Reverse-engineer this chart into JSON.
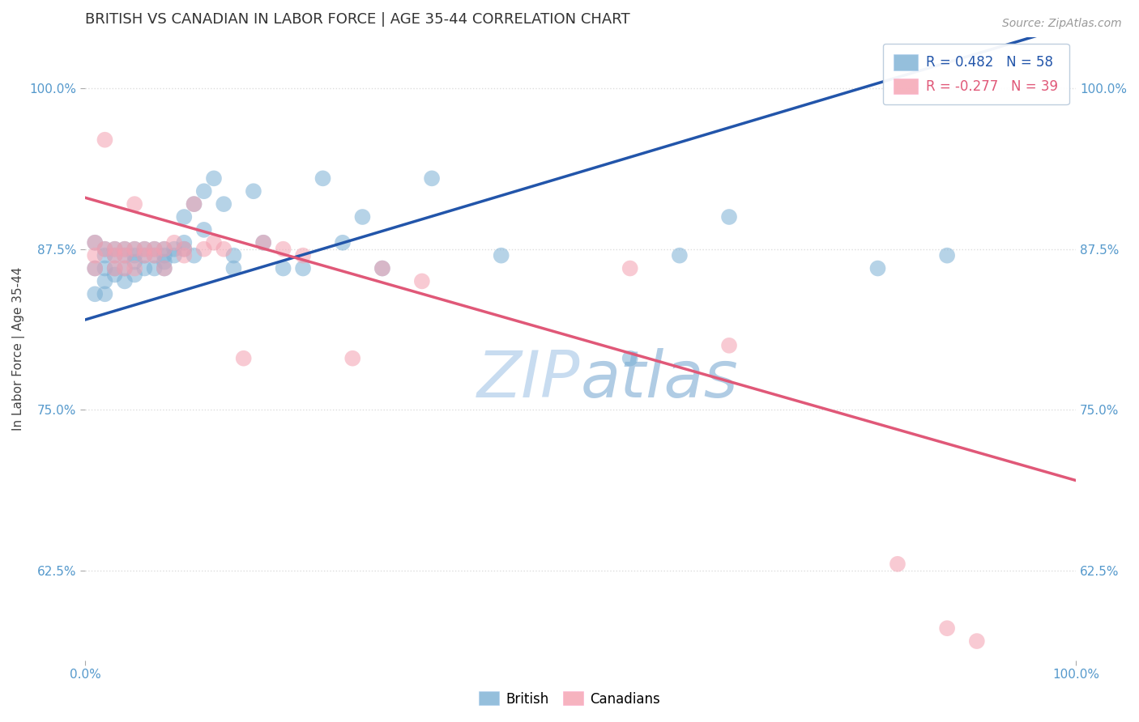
{
  "title": "BRITISH VS CANADIAN IN LABOR FORCE | AGE 35-44 CORRELATION CHART",
  "source_text": "Source: ZipAtlas.com",
  "ylabel": "In Labor Force | Age 35-44",
  "xlim": [
    0.0,
    1.0
  ],
  "ylim": [
    0.555,
    1.04
  ],
  "yticks": [
    0.625,
    0.75,
    0.875,
    1.0
  ],
  "ytick_labels": [
    "62.5%",
    "75.0%",
    "87.5%",
    "100.0%"
  ],
  "xtick_labels": [
    "0.0%",
    "100.0%"
  ],
  "xticks": [
    0.0,
    1.0
  ],
  "R_british": 0.482,
  "N_british": 58,
  "R_canadian": -0.277,
  "N_canadian": 39,
  "british_color": "#7BAFD4",
  "canadian_color": "#F4A0B0",
  "british_line_color": "#2255AA",
  "canadian_line_color": "#E05878",
  "watermark_color": "#D0E4F0",
  "background_color": "#FFFFFF",
  "grid_color": "#DDDDDD",
  "british_x": [
    0.01,
    0.01,
    0.01,
    0.02,
    0.02,
    0.02,
    0.02,
    0.02,
    0.03,
    0.03,
    0.03,
    0.03,
    0.04,
    0.04,
    0.04,
    0.04,
    0.05,
    0.05,
    0.05,
    0.05,
    0.06,
    0.06,
    0.06,
    0.07,
    0.07,
    0.07,
    0.08,
    0.08,
    0.08,
    0.08,
    0.09,
    0.09,
    0.1,
    0.1,
    0.1,
    0.11,
    0.11,
    0.12,
    0.12,
    0.13,
    0.14,
    0.15,
    0.15,
    0.17,
    0.18,
    0.2,
    0.22,
    0.24,
    0.26,
    0.28,
    0.3,
    0.35,
    0.42,
    0.55,
    0.6,
    0.65,
    0.8,
    0.87
  ],
  "british_y": [
    0.88,
    0.86,
    0.84,
    0.875,
    0.87,
    0.86,
    0.85,
    0.84,
    0.875,
    0.87,
    0.86,
    0.855,
    0.875,
    0.87,
    0.86,
    0.85,
    0.875,
    0.87,
    0.865,
    0.855,
    0.875,
    0.87,
    0.86,
    0.875,
    0.87,
    0.86,
    0.875,
    0.87,
    0.865,
    0.86,
    0.875,
    0.87,
    0.9,
    0.88,
    0.875,
    0.91,
    0.87,
    0.89,
    0.92,
    0.93,
    0.91,
    0.87,
    0.86,
    0.92,
    0.88,
    0.86,
    0.86,
    0.93,
    0.88,
    0.9,
    0.86,
    0.93,
    0.87,
    0.79,
    0.87,
    0.9,
    0.86,
    0.87
  ],
  "canadian_x": [
    0.01,
    0.01,
    0.01,
    0.02,
    0.02,
    0.03,
    0.03,
    0.03,
    0.04,
    0.04,
    0.04,
    0.05,
    0.05,
    0.05,
    0.06,
    0.06,
    0.07,
    0.07,
    0.08,
    0.08,
    0.09,
    0.1,
    0.1,
    0.11,
    0.12,
    0.13,
    0.14,
    0.16,
    0.18,
    0.2,
    0.22,
    0.27,
    0.3,
    0.34,
    0.55,
    0.65,
    0.82,
    0.87,
    0.9
  ],
  "canadian_y": [
    0.88,
    0.87,
    0.86,
    0.96,
    0.875,
    0.875,
    0.87,
    0.86,
    0.875,
    0.87,
    0.86,
    0.91,
    0.875,
    0.86,
    0.875,
    0.87,
    0.875,
    0.87,
    0.875,
    0.86,
    0.88,
    0.875,
    0.87,
    0.91,
    0.875,
    0.88,
    0.875,
    0.79,
    0.88,
    0.875,
    0.87,
    0.79,
    0.86,
    0.85,
    0.86,
    0.8,
    0.63,
    0.58,
    0.57
  ]
}
